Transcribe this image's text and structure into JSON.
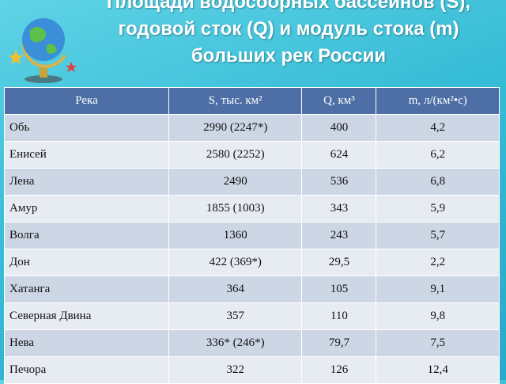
{
  "title": "Площади водосборных бассейнов (S), годовой сток (Q) и модуль стока (m) больших рек России",
  "table": {
    "header": [
      "Река",
      "S, тыс. км²",
      "Q, км³",
      "m, л/(км²•с)"
    ],
    "rows": [
      [
        "Обь",
        "2990 (2247*)",
        "400",
        "4,2"
      ],
      [
        "Енисей",
        "2580 (2252)",
        "624",
        "6,2"
      ],
      [
        "Лена",
        "2490",
        "536",
        "6,8"
      ],
      [
        "Амур",
        "1855 (1003)",
        "343",
        "5,9"
      ],
      [
        "Волга",
        "1360",
        "243",
        "5,7"
      ],
      [
        "Дон",
        "422 (369*)",
        "29,5",
        "2,2"
      ],
      [
        "Хатанга",
        "364",
        "105",
        "9,1"
      ],
      [
        "Северная Двина",
        "357",
        "110",
        "9,8"
      ],
      [
        "Нева",
        "336* (246*)",
        "79,7",
        "7,5"
      ],
      [
        "Печора",
        "322",
        "126",
        "12,4"
      ]
    ]
  }
}
